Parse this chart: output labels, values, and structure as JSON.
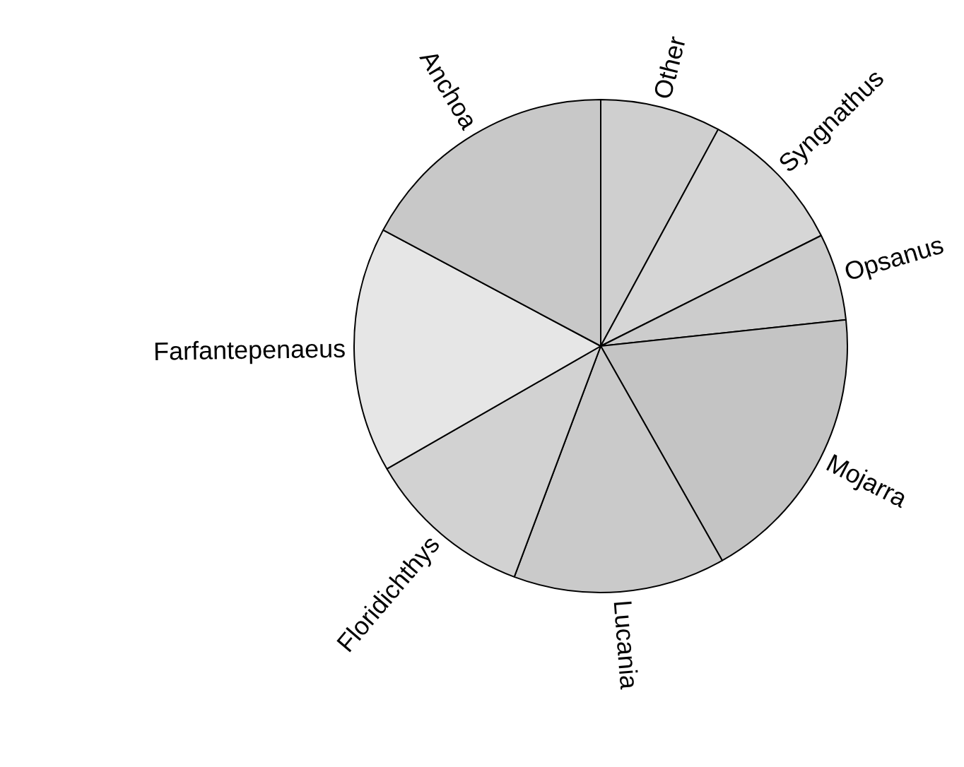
{
  "chart_data": {
    "type": "pie",
    "categories": [
      "Other",
      "Syngnathus",
      "Opsanus",
      "Mojarra",
      "Lucania",
      "Floridichthys",
      "Farfantepenaeus",
      "Anchoa"
    ],
    "values": [
      7.9,
      9.7,
      5.7,
      18.5,
      13.9,
      11.0,
      16.1,
      17.2
    ],
    "colors": [
      "#cfcfcf",
      "#d6d6d6",
      "#cccccc",
      "#c4c4c4",
      "#cacaca",
      "#d2d2d2",
      "#e6e6e6",
      "#c8c8c8"
    ],
    "legend": false
  }
}
